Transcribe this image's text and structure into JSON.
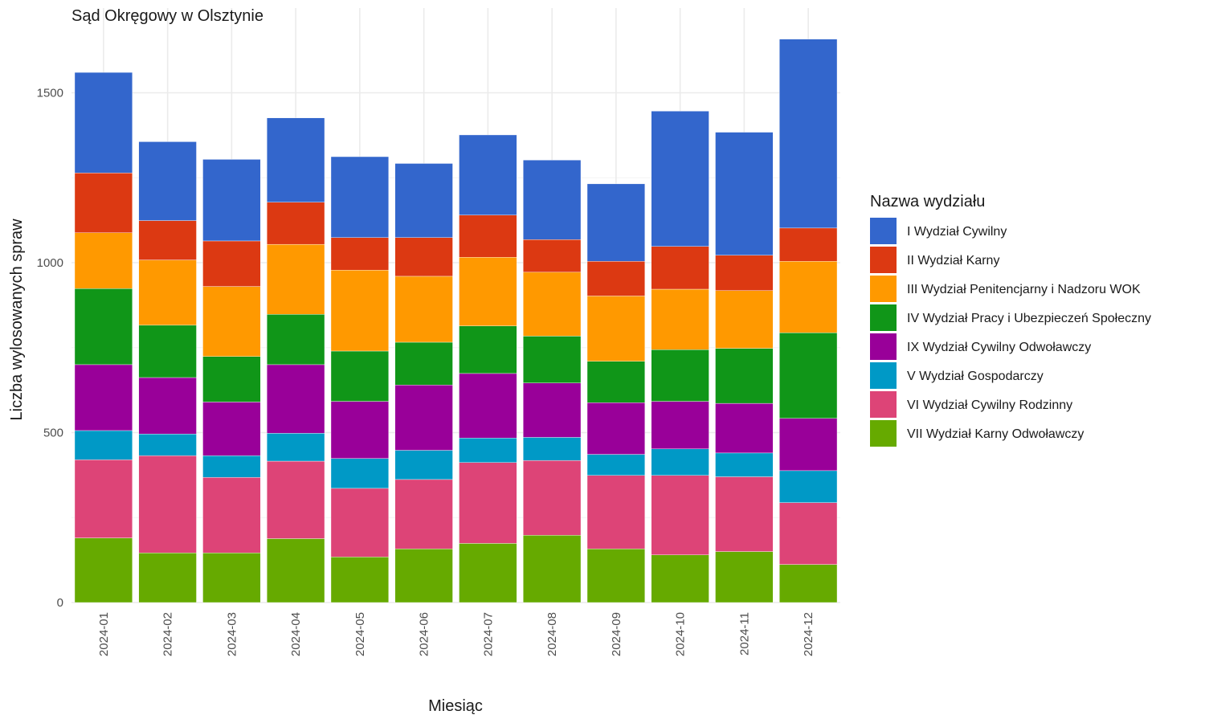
{
  "chart_data": {
    "type": "bar",
    "stacked": true,
    "title": "Sąd Okręgowy w Olsztynie",
    "xlabel": "Miesiąc",
    "ylabel": "Liczba wylosowanych spraw",
    "ylim": [
      0,
      1700
    ],
    "yticks": [
      0,
      500,
      1000,
      1500
    ],
    "grid": true,
    "legend_title": "Nazwa wydziału",
    "legend_position": "right",
    "categories": [
      "2024-01",
      "2024-02",
      "2024-03",
      "2024-04",
      "2024-05",
      "2024-06",
      "2024-07",
      "2024-08",
      "2024-09",
      "2024-10",
      "2024-11",
      "2024-12"
    ],
    "series": [
      {
        "name": "I Wydział Cywilny",
        "color": "#3366cc",
        "values": [
          296,
          232,
          240,
          248,
          238,
          218,
          236,
          234,
          228,
          398,
          362,
          556
        ]
      },
      {
        "name": "II Wydział Karny",
        "color": "#dc3912",
        "values": [
          176,
          116,
          134,
          124,
          96,
          114,
          124,
          96,
          102,
          126,
          104,
          98
        ]
      },
      {
        "name": "III Wydział Penitencjarny i Nadzoru WOK",
        "color": "#ff9900",
        "values": [
          164,
          192,
          206,
          206,
          238,
          194,
          202,
          188,
          192,
          178,
          170,
          210
        ]
      },
      {
        "name": "IV Wydział Pracy i Ubezpieczeń Społeczny",
        "color": "#109618",
        "values": [
          224,
          154,
          134,
          148,
          148,
          126,
          140,
          138,
          122,
          152,
          162,
          252
        ]
      },
      {
        "name": "IX Wydział Cywilny Odwoławczy",
        "color": "#990099",
        "values": [
          194,
          166,
          158,
          202,
          168,
          192,
          190,
          160,
          152,
          140,
          146,
          154
        ]
      },
      {
        "name": "V Wydział Gospodarczy",
        "color": "#0099c6",
        "values": [
          86,
          64,
          64,
          82,
          88,
          86,
          72,
          68,
          62,
          78,
          70,
          94
        ]
      },
      {
        "name": "VI Wydział Cywilny Rodzinny",
        "color": "#dd4477",
        "values": [
          230,
          286,
          222,
          228,
          202,
          204,
          238,
          220,
          216,
          234,
          220,
          182
        ]
      },
      {
        "name": "VII Wydział Karny Odwoławczy",
        "color": "#66aa00",
        "values": [
          190,
          146,
          146,
          188,
          134,
          158,
          174,
          198,
          158,
          140,
          150,
          112
        ]
      }
    ]
  }
}
